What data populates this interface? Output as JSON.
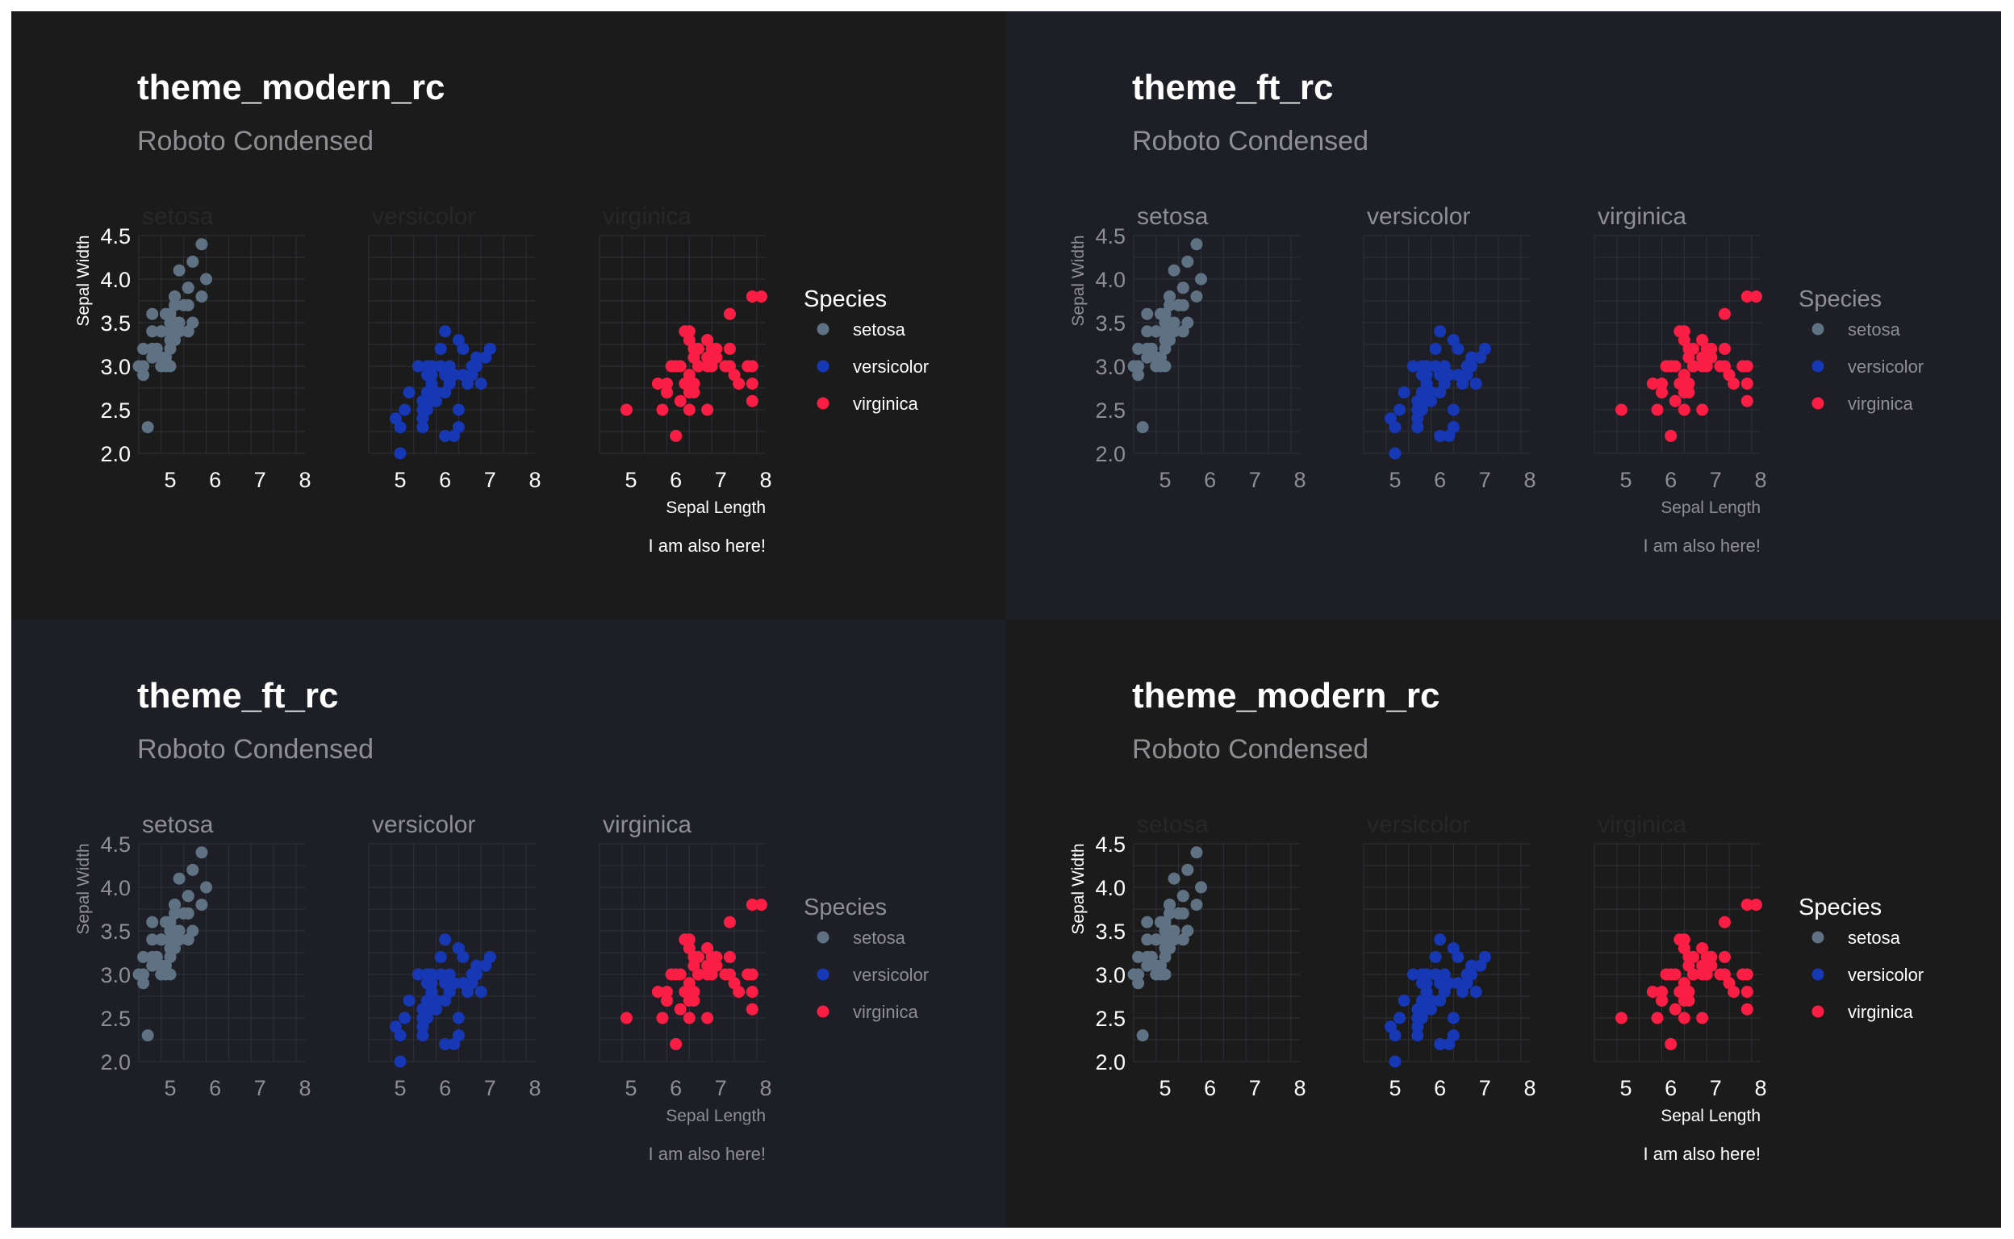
{
  "colors": {
    "modern_bg": "#1b1b1b",
    "ft_bg": "#1e1f26",
    "grid": "#2f3038",
    "modern_text": "#ffffff",
    "ft_text": "#8e8e93",
    "subtitle": "#8e8e93",
    "modern_strip": "#272727"
  },
  "panels": [
    {
      "theme": "modern",
      "title": "theme_modern_rc",
      "subtitle": "Roboto Condensed",
      "caption": "I am also here!",
      "xlabel": "Sepal Length",
      "ylabel": "Sepal Width"
    },
    {
      "theme": "ft",
      "title": "theme_ft_rc",
      "subtitle": "Roboto Condensed",
      "caption": "I am also here!",
      "xlabel": "Sepal Length",
      "ylabel": "Sepal Width"
    },
    {
      "theme": "ft",
      "title": "theme_ft_rc",
      "subtitle": "Roboto Condensed",
      "caption": "I am also here!",
      "xlabel": "Sepal Length",
      "ylabel": "Sepal Width"
    },
    {
      "theme": "modern",
      "title": "theme_modern_rc",
      "subtitle": "Roboto Condensed",
      "caption": "I am also here!",
      "xlabel": "Sepal Length",
      "ylabel": "Sepal Width"
    }
  ],
  "chart_data": {
    "type": "scatter",
    "facet_by": "Species",
    "xlabel": "Sepal Length",
    "ylabel": "Sepal Width",
    "xlim": [
      4.3,
      8.0
    ],
    "ylim": [
      2.0,
      4.5
    ],
    "xticks": [
      5,
      6,
      7,
      8
    ],
    "yticks": [
      2.0,
      2.5,
      3.0,
      3.5,
      4.0,
      4.5
    ],
    "legend_title": "Species",
    "legend_position": "right",
    "series": [
      {
        "name": "setosa",
        "color": "#5f7283",
        "points": [
          [
            5.1,
            3.5
          ],
          [
            4.9,
            3.0
          ],
          [
            4.7,
            3.2
          ],
          [
            4.6,
            3.1
          ],
          [
            5.0,
            3.6
          ],
          [
            5.4,
            3.9
          ],
          [
            4.6,
            3.4
          ],
          [
            5.0,
            3.4
          ],
          [
            4.4,
            2.9
          ],
          [
            4.9,
            3.1
          ],
          [
            5.4,
            3.7
          ],
          [
            4.8,
            3.4
          ],
          [
            4.8,
            3.0
          ],
          [
            4.3,
            3.0
          ],
          [
            5.8,
            4.0
          ],
          [
            5.7,
            4.4
          ],
          [
            5.4,
            3.9
          ],
          [
            5.1,
            3.5
          ],
          [
            5.7,
            3.8
          ],
          [
            5.1,
            3.8
          ],
          [
            5.4,
            3.4
          ],
          [
            5.1,
            3.7
          ],
          [
            4.6,
            3.6
          ],
          [
            5.1,
            3.3
          ],
          [
            4.8,
            3.4
          ],
          [
            5.0,
            3.0
          ],
          [
            5.0,
            3.4
          ],
          [
            5.2,
            3.5
          ],
          [
            5.2,
            3.4
          ],
          [
            4.7,
            3.2
          ],
          [
            4.8,
            3.1
          ],
          [
            5.4,
            3.4
          ],
          [
            5.2,
            4.1
          ],
          [
            5.5,
            4.2
          ],
          [
            4.9,
            3.1
          ],
          [
            5.0,
            3.2
          ],
          [
            5.5,
            3.5
          ],
          [
            4.9,
            3.6
          ],
          [
            4.4,
            3.0
          ],
          [
            5.1,
            3.4
          ],
          [
            5.0,
            3.5
          ],
          [
            4.5,
            2.3
          ],
          [
            4.4,
            3.2
          ],
          [
            5.0,
            3.5
          ],
          [
            5.1,
            3.8
          ],
          [
            4.8,
            3.0
          ],
          [
            5.1,
            3.8
          ],
          [
            4.6,
            3.2
          ],
          [
            5.3,
            3.7
          ],
          [
            5.0,
            3.3
          ]
        ]
      },
      {
        "name": "versicolor",
        "color": "#1738b5",
        "points": [
          [
            7.0,
            3.2
          ],
          [
            6.4,
            3.2
          ],
          [
            6.9,
            3.1
          ],
          [
            5.5,
            2.3
          ],
          [
            6.5,
            2.8
          ],
          [
            5.7,
            2.8
          ],
          [
            6.3,
            3.3
          ],
          [
            4.9,
            2.4
          ],
          [
            6.6,
            2.9
          ],
          [
            5.2,
            2.7
          ],
          [
            5.0,
            2.0
          ],
          [
            5.9,
            3.0
          ],
          [
            6.0,
            2.2
          ],
          [
            6.1,
            2.9
          ],
          [
            5.6,
            2.9
          ],
          [
            6.7,
            3.1
          ],
          [
            5.6,
            3.0
          ],
          [
            5.8,
            2.7
          ],
          [
            6.2,
            2.2
          ],
          [
            5.6,
            2.5
          ],
          [
            5.9,
            3.2
          ],
          [
            6.1,
            2.8
          ],
          [
            6.3,
            2.5
          ],
          [
            6.1,
            2.8
          ],
          [
            6.4,
            2.9
          ],
          [
            6.6,
            3.0
          ],
          [
            6.8,
            2.8
          ],
          [
            6.7,
            3.0
          ],
          [
            6.0,
            2.9
          ],
          [
            5.7,
            2.6
          ],
          [
            5.5,
            2.4
          ],
          [
            5.5,
            2.4
          ],
          [
            5.8,
            2.7
          ],
          [
            6.0,
            2.7
          ],
          [
            5.4,
            3.0
          ],
          [
            6.0,
            3.4
          ],
          [
            6.7,
            3.1
          ],
          [
            6.3,
            2.3
          ],
          [
            5.6,
            3.0
          ],
          [
            5.5,
            2.5
          ],
          [
            5.5,
            2.6
          ],
          [
            6.1,
            3.0
          ],
          [
            5.8,
            2.6
          ],
          [
            5.0,
            2.3
          ],
          [
            5.6,
            2.7
          ],
          [
            5.7,
            3.0
          ],
          [
            5.7,
            2.9
          ],
          [
            6.2,
            2.9
          ],
          [
            5.1,
            2.5
          ],
          [
            5.7,
            2.8
          ]
        ]
      },
      {
        "name": "virginica",
        "color": "#fa1e44",
        "points": [
          [
            6.3,
            3.3
          ],
          [
            5.8,
            2.7
          ],
          [
            7.1,
            3.0
          ],
          [
            6.3,
            2.9
          ],
          [
            6.5,
            3.0
          ],
          [
            7.6,
            3.0
          ],
          [
            4.9,
            2.5
          ],
          [
            7.3,
            2.9
          ],
          [
            6.7,
            2.5
          ],
          [
            7.2,
            3.6
          ],
          [
            6.5,
            3.2
          ],
          [
            6.4,
            2.7
          ],
          [
            6.8,
            3.0
          ],
          [
            5.7,
            2.5
          ],
          [
            5.8,
            2.8
          ],
          [
            6.4,
            3.2
          ],
          [
            6.5,
            3.0
          ],
          [
            7.7,
            3.8
          ],
          [
            7.7,
            2.6
          ],
          [
            6.0,
            2.2
          ],
          [
            6.9,
            3.2
          ],
          [
            5.6,
            2.8
          ],
          [
            7.7,
            2.8
          ],
          [
            6.3,
            2.7
          ],
          [
            6.7,
            3.3
          ],
          [
            7.2,
            3.2
          ],
          [
            6.2,
            2.8
          ],
          [
            6.1,
            3.0
          ],
          [
            6.4,
            2.8
          ],
          [
            7.2,
            3.0
          ],
          [
            7.4,
            2.8
          ],
          [
            7.9,
            3.8
          ],
          [
            6.4,
            2.8
          ],
          [
            6.3,
            2.8
          ],
          [
            6.1,
            2.6
          ],
          [
            7.7,
            3.0
          ],
          [
            6.3,
            3.4
          ],
          [
            6.4,
            3.1
          ],
          [
            6.0,
            3.0
          ],
          [
            6.9,
            3.1
          ],
          [
            6.7,
            3.1
          ],
          [
            6.9,
            3.1
          ],
          [
            5.8,
            2.7
          ],
          [
            6.8,
            3.2
          ],
          [
            6.7,
            3.3
          ],
          [
            6.7,
            3.0
          ],
          [
            6.3,
            2.5
          ],
          [
            6.5,
            3.0
          ],
          [
            6.2,
            3.4
          ],
          [
            5.9,
            3.0
          ]
        ]
      }
    ]
  }
}
